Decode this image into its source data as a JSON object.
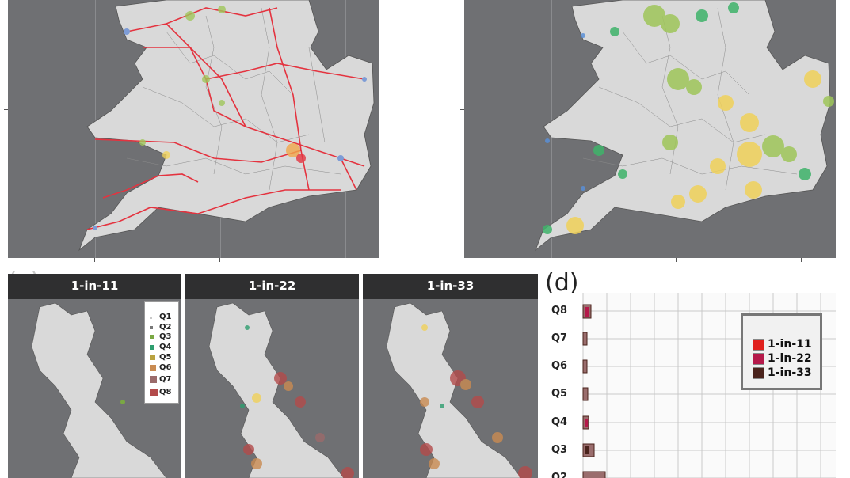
{
  "panel_c": {
    "letter": "(c)",
    "maps": [
      {
        "title": "1-in-11"
      },
      {
        "title": "1-in-22"
      },
      {
        "title": "1-in-33"
      }
    ],
    "legend": [
      {
        "label": "Q1",
        "color": "#c8c8c8"
      },
      {
        "label": "Q2",
        "color": "#777777"
      },
      {
        "label": "Q3",
        "color": "#7aa843"
      },
      {
        "label": "Q4",
        "color": "#2e9e6f"
      },
      {
        "label": "Q5",
        "color": "#b9a240"
      },
      {
        "label": "Q6",
        "color": "#c98b52"
      },
      {
        "label": "Q7",
        "color": "#9b6b6b"
      },
      {
        "label": "Q8",
        "color": "#b34b4b"
      }
    ]
  },
  "panel_d": {
    "letter": "(d)",
    "categories": [
      "Q8",
      "Q7",
      "Q6",
      "Q5",
      "Q4",
      "Q3",
      "Q2"
    ],
    "legend": [
      {
        "label": "1-in-11",
        "color": "#e0201c"
      },
      {
        "label": "1-in-22",
        "color": "#b5194a"
      },
      {
        "label": "1-in-33",
        "color": "#4a231c"
      }
    ]
  }
}
